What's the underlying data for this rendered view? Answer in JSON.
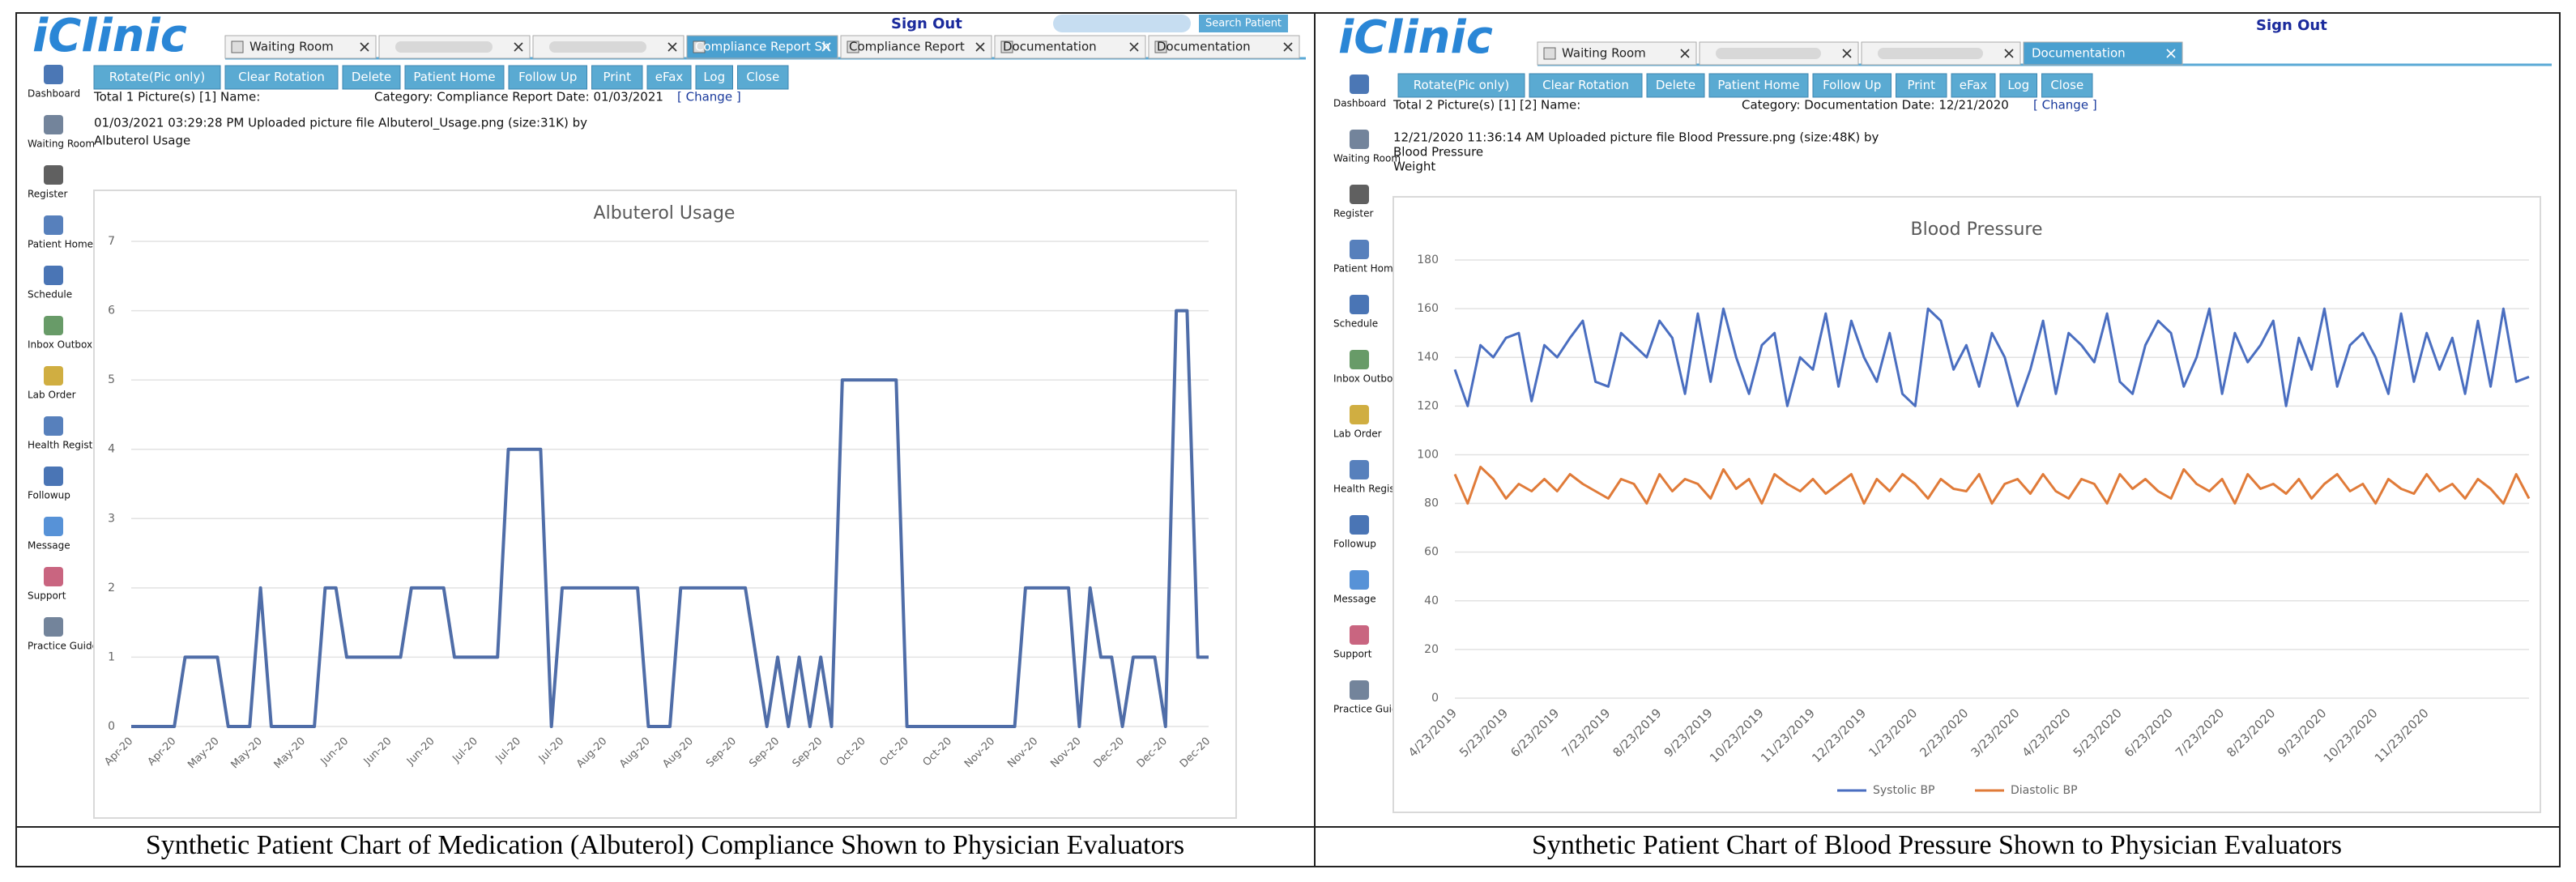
{
  "panels": [
    {
      "logo": "iClinic",
      "sign_out": "Sign Out",
      "search_button": "Search Patient",
      "tabs": [
        "Waiting Room",
        "Compliance Report Sh",
        "Compliance Report",
        "Documentation",
        "Documentation"
      ],
      "toolbar": [
        "Rotate(Pic only)",
        "Clear Rotation",
        "Delete",
        "Patient Home",
        "Follow Up",
        "Print",
        "eFax",
        "Log",
        "Close"
      ],
      "sidebar": [
        "Dashboard",
        "Waiting Room",
        "Register",
        "Patient Home",
        "Schedule",
        "Inbox Outbox",
        "Lab Order",
        "Health Registry",
        "Followup",
        "Message",
        "Support",
        "Practice Guideline"
      ],
      "summary": "Total   1 Picture(s) [1]   Name:",
      "category": "Category:  Compliance Report Date:  01/03/2021",
      "change": "[ Change ]",
      "upload": "01/03/2021 03:29:28 PM Uploaded picture file Albuterol_Usage.png (size:31K) by",
      "descriptions": [
        "Albuterol Usage"
      ],
      "caption": "Synthetic Patient Chart of Medication (Albuterol) Compliance Shown to Physician Evaluators"
    },
    {
      "logo": "iClinic",
      "sign_out": "Sign Out",
      "tabs": [
        "Waiting Room",
        "Documentation"
      ],
      "toolbar": [
        "Rotate(Pic only)",
        "Clear Rotation",
        "Delete",
        "Patient Home",
        "Follow Up",
        "Print",
        "eFax",
        "Log",
        "Close"
      ],
      "sidebar": [
        "Dashboard",
        "Waiting Room",
        "Register",
        "Patient Home",
        "Schedule",
        "Inbox Outbox",
        "Lab Order",
        "Health Registry",
        "Followup",
        "Message",
        "Support",
        "Practice Guideline"
      ],
      "summary": "Total   2 Picture(s) [1] [2]   Name:",
      "category": "Category:  Documentation Date:  12/21/2020",
      "change": "[ Change ]",
      "upload": "12/21/2020 11:36:14 AM Uploaded picture file Blood Pressure.png (size:48K) by",
      "descriptions": [
        "Blood Pressure",
        "Weight"
      ],
      "caption": "Synthetic Patient Chart of Blood Pressure Shown to Physician Evaluators"
    }
  ],
  "chart_data": [
    {
      "type": "line",
      "title": "Albuterol Usage",
      "color": "#4f6da8",
      "grid": true,
      "ylim": [
        0,
        7
      ],
      "yticks": [
        0,
        1,
        2,
        3,
        4,
        5,
        6,
        7
      ],
      "categories": [
        "Apr-20",
        null,
        null,
        null,
        "Apr-20",
        null,
        null,
        null,
        "May-20",
        null,
        null,
        null,
        "May-20",
        null,
        null,
        null,
        "May-20",
        null,
        null,
        null,
        "Jun-20",
        null,
        null,
        null,
        "Jun-20",
        null,
        null,
        null,
        "Jun-20",
        null,
        null,
        null,
        "Jul-20",
        null,
        null,
        null,
        "Jul-20",
        null,
        null,
        null,
        "Jul-20",
        null,
        null,
        null,
        "Aug-20",
        null,
        null,
        null,
        "Aug-20",
        null,
        null,
        null,
        "Aug-20",
        null,
        null,
        null,
        "Sep-20",
        null,
        null,
        null,
        "Sep-20",
        null,
        null,
        null,
        "Sep-20",
        null,
        null,
        null,
        "Oct-20",
        null,
        null,
        null,
        "Oct-20",
        null,
        null,
        null,
        "Oct-20",
        null,
        null,
        null,
        "Nov-20",
        null,
        null,
        null,
        "Nov-20",
        null,
        null,
        null,
        "Nov-20",
        null,
        null,
        null,
        "Dec-20",
        null,
        null,
        null,
        "Dec-20",
        null,
        null,
        null,
        "Dec-20"
      ],
      "values": [
        0,
        0,
        0,
        0,
        0,
        1,
        1,
        1,
        1,
        0,
        0,
        0,
        2,
        0,
        0,
        0,
        0,
        0,
        2,
        2,
        1,
        1,
        1,
        1,
        1,
        1,
        2,
        2,
        2,
        2,
        1,
        1,
        1,
        1,
        1,
        4,
        4,
        4,
        4,
        0,
        2,
        2,
        2,
        2,
        2,
        2,
        2,
        2,
        0,
        0,
        0,
        2,
        2,
        2,
        2,
        2,
        2,
        2,
        1,
        0,
        1,
        0,
        1,
        0,
        1,
        0,
        5,
        5,
        5,
        5,
        5,
        5,
        0,
        0,
        0,
        0,
        0,
        0,
        0,
        0,
        0,
        0,
        0,
        2,
        2,
        2,
        2,
        2,
        0,
        2,
        1,
        1,
        0,
        1,
        1,
        1,
        0,
        6,
        6,
        1,
        1
      ]
    },
    {
      "type": "line",
      "title": "Blood Pressure",
      "grid": true,
      "legend": "bottom",
      "ylim": [
        0,
        180
      ],
      "yticks": [
        0,
        20,
        40,
        60,
        80,
        100,
        120,
        140,
        160,
        180
      ],
      "categories": [
        "4/23/2019",
        null,
        null,
        null,
        "5/23/2019",
        null,
        null,
        null,
        "6/23/2019",
        null,
        null,
        null,
        "7/23/2019",
        null,
        null,
        null,
        "8/23/2019",
        null,
        null,
        null,
        "9/23/2019",
        null,
        null,
        null,
        "10/23/2019",
        null,
        null,
        null,
        "11/23/2019",
        null,
        null,
        null,
        "12/23/2019",
        null,
        null,
        null,
        "1/23/2020",
        null,
        null,
        null,
        "2/23/2020",
        null,
        null,
        null,
        "3/23/2020",
        null,
        null,
        null,
        "4/23/2020",
        null,
        null,
        null,
        "5/23/2020",
        null,
        null,
        null,
        "6/23/2020",
        null,
        null,
        null,
        "7/23/2020",
        null,
        null,
        null,
        "8/23/2020",
        null,
        null,
        null,
        "9/23/2020",
        null,
        null,
        null,
        "10/23/2020",
        null,
        null,
        null,
        "11/23/2020",
        null,
        null,
        null,
        null,
        null,
        null,
        null,
        null
      ],
      "series": [
        {
          "name": "Systolic BP",
          "color": "#4a6ec0",
          "values": [
            135,
            120,
            145,
            140,
            148,
            150,
            122,
            145,
            140,
            148,
            155,
            130,
            128,
            150,
            145,
            140,
            155,
            148,
            125,
            158,
            130,
            160,
            140,
            125,
            145,
            150,
            120,
            140,
            135,
            158,
            128,
            155,
            140,
            130,
            150,
            125,
            120,
            160,
            155,
            135,
            145,
            128,
            150,
            140,
            120,
            135,
            155,
            125,
            150,
            145,
            138,
            158,
            130,
            125,
            145,
            155,
            150,
            128,
            140,
            160,
            125,
            150,
            138,
            145,
            155,
            120,
            148,
            135,
            160,
            128,
            145,
            150,
            140,
            125,
            158,
            130,
            150,
            135,
            148,
            125,
            155,
            128,
            160,
            130,
            132
          ]
        },
        {
          "name": "Diastolic BP",
          "color": "#e07b39",
          "values": [
            92,
            80,
            95,
            90,
            82,
            88,
            85,
            90,
            85,
            92,
            88,
            85,
            82,
            90,
            88,
            80,
            92,
            85,
            90,
            88,
            82,
            94,
            86,
            90,
            80,
            92,
            88,
            85,
            90,
            84,
            88,
            92,
            80,
            90,
            85,
            92,
            88,
            82,
            90,
            86,
            85,
            92,
            80,
            88,
            90,
            84,
            92,
            85,
            82,
            90,
            88,
            80,
            92,
            86,
            90,
            85,
            82,
            94,
            88,
            85,
            90,
            80,
            92,
            86,
            88,
            84,
            90,
            82,
            88,
            92,
            85,
            88,
            80,
            90,
            86,
            84,
            92,
            85,
            88,
            82,
            90,
            86,
            80,
            92,
            82
          ]
        }
      ]
    }
  ]
}
